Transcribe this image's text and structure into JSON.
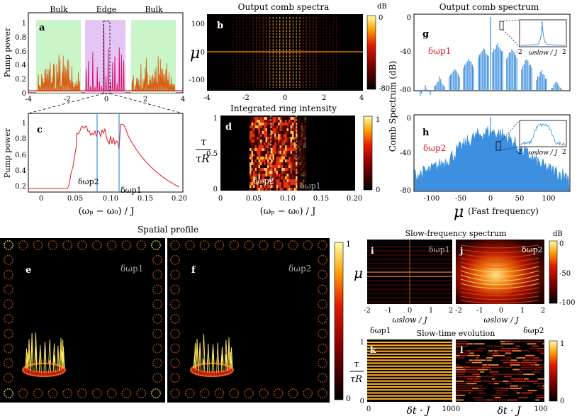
{
  "panels": {
    "a": {
      "label": "a",
      "ylabel": "Pump power",
      "regions": [
        "Bulk",
        "Edge",
        "Bulk"
      ],
      "xticks": [
        "-4",
        "-2",
        "0",
        "2",
        "4"
      ],
      "yticks": [
        "0",
        "0.2",
        "0.4",
        "0.6",
        "0.8",
        "1"
      ]
    },
    "b": {
      "label": "b",
      "title": "Output comb spectra",
      "ylabel": "μ",
      "cb_unit": "dB",
      "cb_ticks": [
        "0",
        "-80"
      ],
      "xticks": [
        "-4",
        "-2",
        "0",
        "2",
        "4"
      ],
      "yticks": [
        "100",
        "0",
        "-100"
      ]
    },
    "c": {
      "label": "c",
      "ylabel": "Pump power",
      "xlabel": "(ωₚ − ω₀) / J",
      "markers": [
        "δωp2",
        "δωp1"
      ],
      "xticks": [
        "0",
        "0.05",
        "0.10",
        "0.15",
        "0.20"
      ],
      "yticks": [
        "0.2",
        "0.4",
        "0.6",
        "0.8",
        "1"
      ]
    },
    "d": {
      "label": "d",
      "title": "Integrated ring intensity",
      "ylabel_top": "τ",
      "ylabel_bot": "τR",
      "xlabel": "(ωₚ − ω₀) / J",
      "markers": [
        "δωp2",
        "δωp1"
      ],
      "cb_ticks": [
        "1",
        "0"
      ],
      "xticks": [
        "0",
        "0.05",
        "0.10",
        "0.15",
        "0.20"
      ],
      "yticks": [
        "1",
        "0.5",
        "0"
      ]
    },
    "g": {
      "label": "g",
      "title": "Output comb spectrum",
      "marker": "δωp1",
      "inset_xlabel": "ωslow / J",
      "inset_xticks": [
        "-2",
        "2"
      ],
      "yticks": [
        "0",
        "-40",
        "-80"
      ]
    },
    "h": {
      "label": "h",
      "marker": "δωp2",
      "inset_xlabel": "ωslow / J",
      "inset_xticks": [
        "-2",
        "2"
      ],
      "xlabel_mu": "μ",
      "xlabel_rest": "(Fast frequency)",
      "xticks": [
        "-100",
        "-50",
        "0",
        "50",
        "100"
      ],
      "yticks": [
        "0",
        "-40",
        "-80"
      ]
    },
    "gh_ylabel": "Comb Spectrum (dB)",
    "spatial": {
      "title": "Spatial profile",
      "e": "e",
      "f": "f",
      "e_marker": "δωp1",
      "f_marker": "δωp2",
      "cb_ticks": [
        "1",
        "0"
      ]
    },
    "i": {
      "label": "i",
      "marker": "δωp1",
      "xlabel": "ωslow / J",
      "xticks": [
        "-2",
        "-1",
        "0",
        "1",
        "2"
      ],
      "ylabel": "μ"
    },
    "j": {
      "label": "j",
      "marker": "δωp2",
      "xlabel": "ωslow / J",
      "xticks": [
        "-2",
        "-1",
        "0",
        "1",
        "2"
      ]
    },
    "ij_title": "Slow-frequency spectrum",
    "ij_cb": {
      "unit": "dB",
      "ticks": [
        "0",
        "-50",
        "-100"
      ]
    },
    "kl_title": "Slow-time evolution",
    "k": {
      "label": "k",
      "marker": "δωp1",
      "xlabel": "δt · J",
      "xticks": [
        "0",
        "100"
      ],
      "yticks": [
        "1",
        "0"
      ],
      "ylabel_top": "τ",
      "ylabel_bot": "τR"
    },
    "l": {
      "label": "l",
      "marker": "δωp2",
      "xlabel": "δt · J",
      "xticks": [
        "0",
        "100"
      ]
    },
    "kl_cb": {
      "ticks": [
        "1",
        "0"
      ]
    }
  },
  "colors": {
    "bulk": "#c9f5c9",
    "edge": "#e3c6f3",
    "red": "#e2161e",
    "blue": "#3d8fe0",
    "orange": "#d85c12"
  }
}
